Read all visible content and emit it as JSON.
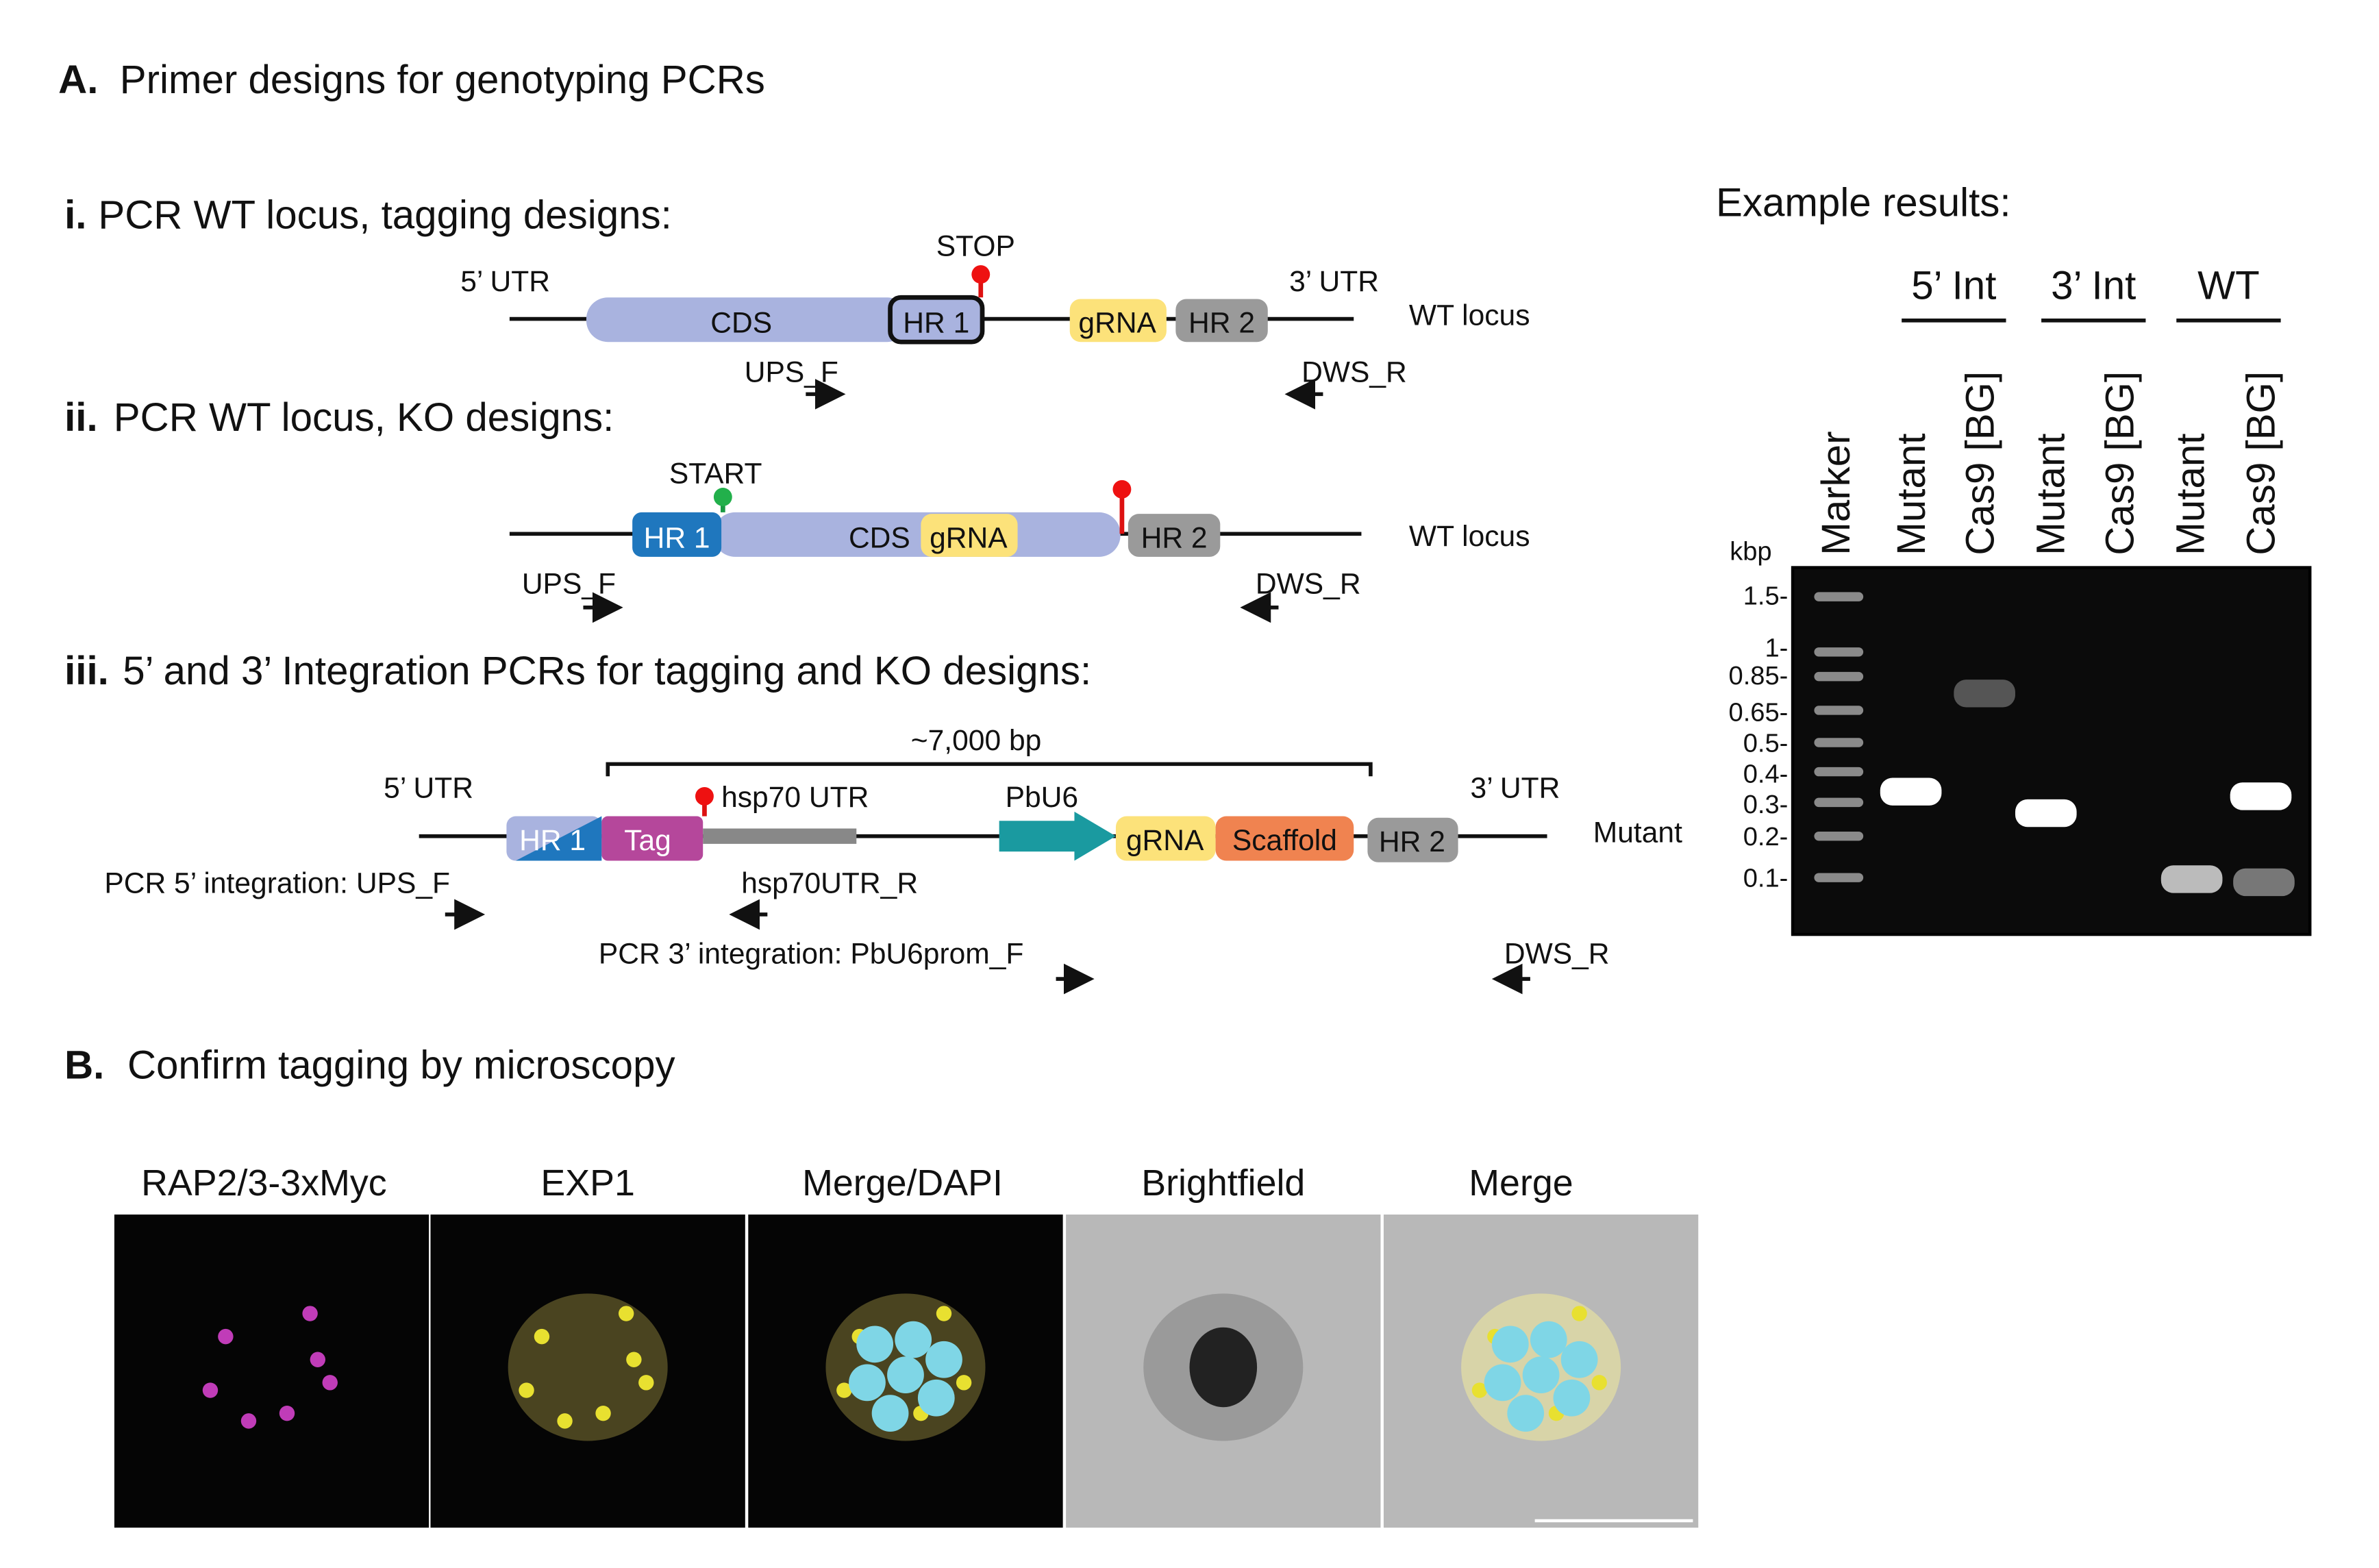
{
  "panel_a": {
    "label": "A.",
    "title": "Primer designs for genotyping PCRs",
    "i": {
      "label": "i.",
      "title": "PCR WT locus, tagging designs:",
      "utr5": "5’ UTR",
      "utr3": "3’ UTR",
      "cds": "CDS",
      "hr1": "HR 1",
      "stop": "STOP",
      "grna": "gRNA",
      "hr2": "HR 2",
      "locus": "WT locus",
      "primer_f": "UPS_F",
      "primer_r": "DWS_R"
    },
    "ii": {
      "label": "ii.",
      "title": "PCR WT locus, KO designs:",
      "start": "START",
      "hr1": "HR 1",
      "cds": "CDS",
      "grna": "gRNA",
      "hr2": "HR 2",
      "locus": "WT locus",
      "primer_f": "UPS_F",
      "primer_r": "DWS_R"
    },
    "iii": {
      "label": "iii.",
      "title": "5’ and 3’ Integration PCRs for tagging and KO designs:",
      "span": "~7,000 bp",
      "utr5": "5’ UTR",
      "utr3": "3’ UTR",
      "hr1": "HR 1",
      "tag": "Tag",
      "hsp70": "hsp70 UTR",
      "promoter": "PbU6",
      "grna": "gRNA",
      "scaffold": "Scaffold",
      "hr2": "HR 2",
      "locus": "Mutant",
      "pcr5": "PCR 5’ integration: UPS_F",
      "pcr5_r": "hsp70UTR_R",
      "pcr3": "PCR 3’ integration: PbU6prom_F",
      "pcr3_r": "DWS_R"
    }
  },
  "gel": {
    "title": "Example results:",
    "groups": [
      "5’ Int",
      "3’ Int",
      "WT"
    ],
    "lanes": [
      "Marker",
      "Mutant",
      "Cas9 [BG]",
      "Mutant",
      "Cas9 [BG]",
      "Mutant",
      "Cas9 [BG]"
    ],
    "unit": "kbp",
    "sizes": [
      "1.5-",
      "1-",
      "0.85-",
      "0.65-",
      "0.5-",
      "0.4-",
      "0.3-",
      "0.2-",
      "0.1-"
    ]
  },
  "panel_b": {
    "label": "B.",
    "title": "Confirm tagging by microscopy",
    "images": [
      "RAP2/3-3xMyc",
      "EXP1",
      "Merge/DAPI",
      "Brightfield",
      "Merge"
    ]
  }
}
